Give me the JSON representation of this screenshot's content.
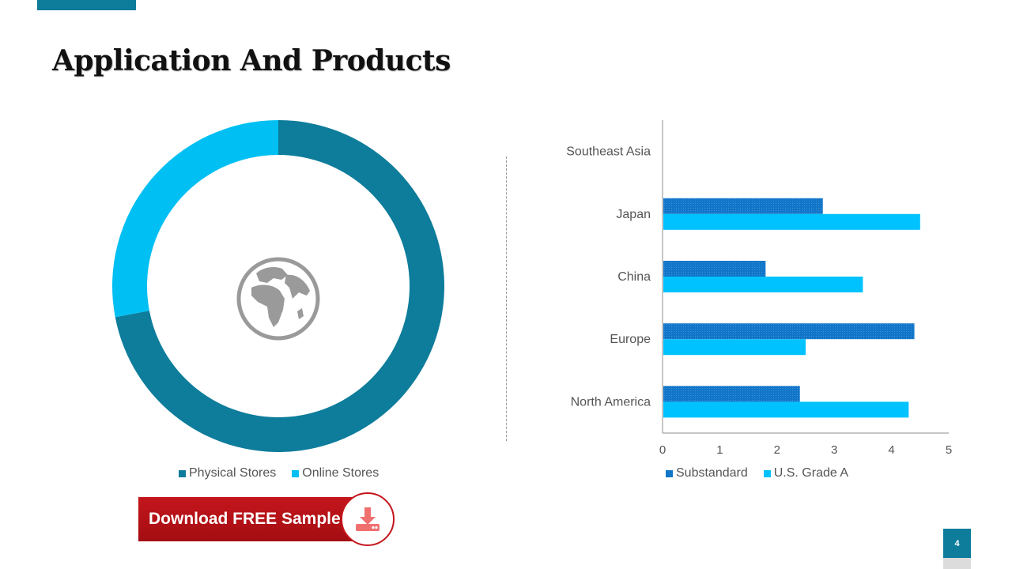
{
  "title": "Application And Products",
  "colors": {
    "accent": "#0e7c9b",
    "physical": "#0e7c9b",
    "online": "#00bff3",
    "substandard": "#1175c8",
    "grade_a": "#00c2ff",
    "download_red": "#c4161c"
  },
  "chart_data": [
    {
      "type": "pie",
      "variant": "donut",
      "categories": [
        "Physical Stores",
        "Online Stores"
      ],
      "values": [
        72,
        28
      ],
      "center_icon": "globe-icon",
      "legend": "bottom"
    },
    {
      "type": "bar",
      "orientation": "horizontal",
      "categories": [
        "North America",
        "Europe",
        "China",
        "Japan",
        "Southeast Asia"
      ],
      "series": [
        {
          "name": "Substandard",
          "values": [
            2.4,
            4.4,
            1.8,
            2.8,
            null
          ]
        },
        {
          "name": "U.S. Grade A",
          "values": [
            4.3,
            2.5,
            3.5,
            4.5,
            null
          ]
        }
      ],
      "xlim": [
        0,
        5
      ],
      "xticks": [
        "0",
        "1",
        "2",
        "3",
        "4",
        "5"
      ],
      "grid": false,
      "legend": "bottom"
    }
  ],
  "legend_donut": [
    "Physical Stores",
    "Online Stores"
  ],
  "legend_bar": [
    "Substandard",
    "U.S. Grade A"
  ],
  "download": {
    "label": "Download FREE Sample",
    "icon": "download-icon"
  },
  "page_number": "4"
}
